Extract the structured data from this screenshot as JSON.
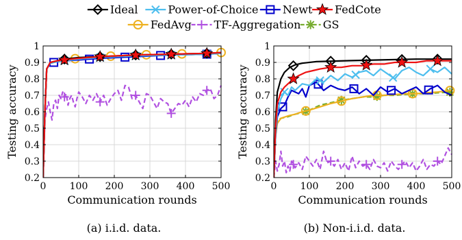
{
  "legend": [
    {
      "name": "Ideal",
      "color": "#000000",
      "marker": "diamond",
      "dash": "solid"
    },
    {
      "name": "Power-of-Choice",
      "color": "#4DBEEE",
      "marker": "x",
      "dash": "solid"
    },
    {
      "name": "Newt",
      "color": "#0000CC",
      "marker": "square",
      "dash": "solid"
    },
    {
      "name": "FedCote",
      "color": "#EE1111",
      "marker": "star",
      "dash": "solid"
    },
    {
      "name": "FedAvg",
      "color": "#EDB120",
      "marker": "circle",
      "dash": "solid"
    },
    {
      "name": "TF-Aggregation",
      "color": "#B050E0",
      "marker": "plus",
      "dash": "dash"
    },
    {
      "name": "GS",
      "color": "#77AC30",
      "marker": "asterisk",
      "dash": "dash"
    }
  ],
  "chart_data": [
    {
      "type": "line",
      "caption": "(a) i.i.d. data.",
      "xlabel": "Communication rounds",
      "ylabel": "Testing accuracy",
      "xlim": [
        0,
        500
      ],
      "ylim": [
        0.2,
        1
      ],
      "xticks": [
        0,
        100,
        200,
        300,
        400,
        500
      ],
      "yticks": [
        0.2,
        0.3,
        0.4,
        0.5,
        0.6,
        0.7,
        0.8,
        0.9,
        1
      ],
      "ytick_labels": [
        "0.2",
        "0.3",
        "0.4",
        "0.5",
        "0.6",
        "0.7",
        "0.8",
        "0.9",
        "1"
      ],
      "grid": true,
      "series": [
        {
          "name": "Ideal",
          "x": [
            0,
            5,
            10,
            20,
            40,
            60,
            100,
            160,
            260,
            360,
            460,
            500
          ],
          "y": [
            0.2,
            0.6,
            0.86,
            0.9,
            0.91,
            0.92,
            0.93,
            0.935,
            0.945,
            0.95,
            0.955,
            0.96
          ],
          "markers_x": [
            60,
            160,
            260,
            360,
            460
          ]
        },
        {
          "name": "Power-of-Choice",
          "x": [
            0,
            5,
            10,
            20,
            40,
            60,
            100,
            160,
            260,
            360,
            460,
            500
          ],
          "y": [
            0.2,
            0.6,
            0.86,
            0.895,
            0.905,
            0.91,
            0.92,
            0.93,
            0.94,
            0.945,
            0.95,
            0.955
          ],
          "markers_x": [
            60,
            160,
            260,
            360,
            460
          ]
        },
        {
          "name": "Newt",
          "x": [
            0,
            5,
            10,
            20,
            40,
            60,
            100,
            160,
            260,
            360,
            460,
            500
          ],
          "y": [
            0.2,
            0.6,
            0.86,
            0.895,
            0.905,
            0.91,
            0.915,
            0.925,
            0.935,
            0.945,
            0.95,
            0.955
          ],
          "markers_x": [
            30,
            130,
            230,
            330,
            460
          ]
        },
        {
          "name": "FedCote",
          "x": [
            0,
            5,
            10,
            20,
            40,
            60,
            100,
            160,
            260,
            360,
            460,
            500
          ],
          "y": [
            0.2,
            0.6,
            0.86,
            0.9,
            0.91,
            0.915,
            0.925,
            0.935,
            0.945,
            0.95,
            0.955,
            0.96
          ],
          "markers_x": [
            60,
            160,
            260,
            360,
            460
          ]
        },
        {
          "name": "FedAvg",
          "x": [
            0,
            5,
            10,
            20,
            40,
            60,
            100,
            160,
            260,
            360,
            460,
            500
          ],
          "y": [
            0.2,
            0.6,
            0.86,
            0.895,
            0.91,
            0.915,
            0.925,
            0.935,
            0.945,
            0.95,
            0.955,
            0.96
          ],
          "markers_x": [
            90,
            190,
            290,
            390,
            500
          ]
        },
        {
          "name": "TF-Aggregation",
          "x": [
            0,
            5,
            10,
            15,
            20,
            25,
            30,
            35,
            40,
            45,
            50,
            55,
            60,
            65,
            70,
            75,
            80,
            85,
            90,
            95,
            100,
            110,
            120,
            130,
            140,
            150,
            160,
            170,
            180,
            190,
            200,
            210,
            220,
            230,
            240,
            250,
            260,
            270,
            280,
            290,
            300,
            310,
            320,
            330,
            340,
            350,
            360,
            370,
            380,
            390,
            400,
            410,
            420,
            430,
            440,
            450,
            460,
            470,
            480,
            490,
            500
          ],
          "y": [
            0.2,
            0.55,
            0.62,
            0.66,
            0.6,
            0.55,
            0.65,
            0.67,
            0.62,
            0.7,
            0.68,
            0.72,
            0.69,
            0.71,
            0.64,
            0.68,
            0.7,
            0.66,
            0.63,
            0.68,
            0.72,
            0.69,
            0.65,
            0.7,
            0.67,
            0.71,
            0.66,
            0.7,
            0.64,
            0.68,
            0.71,
            0.73,
            0.67,
            0.76,
            0.75,
            0.68,
            0.7,
            0.66,
            0.62,
            0.71,
            0.7,
            0.66,
            0.62,
            0.68,
            0.66,
            0.65,
            0.59,
            0.62,
            0.65,
            0.64,
            0.67,
            0.63,
            0.69,
            0.66,
            0.71,
            0.7,
            0.73,
            0.74,
            0.68,
            0.7,
            0.76
          ],
          "markers_x": [
            60,
            160,
            260,
            360,
            460
          ]
        },
        {
          "name": "GS",
          "x": [
            0,
            5,
            10,
            20,
            40,
            60,
            100,
            160,
            260,
            360,
            460,
            500
          ],
          "y": [
            0.2,
            0.6,
            0.86,
            0.895,
            0.905,
            0.91,
            0.92,
            0.93,
            0.94,
            0.945,
            0.95,
            0.955
          ],
          "markers_x": []
        }
      ]
    },
    {
      "type": "line",
      "caption": "(b) Non-i.i.d. data.",
      "xlabel": "Communication rounds",
      "ylabel": "Testing accuracy",
      "xlim": [
        0,
        500
      ],
      "ylim": [
        0.2,
        1
      ],
      "xticks": [
        0,
        100,
        200,
        300,
        400,
        500
      ],
      "yticks": [
        0.2,
        0.3,
        0.4,
        0.5,
        0.6,
        0.7,
        0.8,
        0.9,
        1
      ],
      "ytick_labels": [
        "0.2",
        "0.3",
        "0.4",
        "0.5",
        "0.6",
        "0.7",
        "0.8",
        "0.9",
        "1"
      ],
      "grid": true,
      "series": [
        {
          "name": "Ideal",
          "x": [
            0,
            5,
            10,
            20,
            30,
            45,
            60,
            80,
            120,
            200,
            300,
            400,
            500
          ],
          "y": [
            0.2,
            0.55,
            0.72,
            0.8,
            0.84,
            0.87,
            0.885,
            0.895,
            0.905,
            0.91,
            0.915,
            0.92,
            0.92
          ],
          "markers_x": [
            55,
            160,
            260,
            360,
            460
          ]
        },
        {
          "name": "Power-of-Choice",
          "x": [
            0,
            5,
            10,
            20,
            30,
            40,
            50,
            60,
            80,
            100,
            120,
            140,
            160,
            180,
            200,
            220,
            240,
            260,
            280,
            300,
            320,
            340,
            360,
            380,
            400,
            420,
            440,
            460,
            480,
            500
          ],
          "y": [
            0.2,
            0.45,
            0.6,
            0.68,
            0.72,
            0.7,
            0.75,
            0.73,
            0.77,
            0.76,
            0.8,
            0.78,
            0.82,
            0.79,
            0.83,
            0.81,
            0.84,
            0.85,
            0.82,
            0.86,
            0.83,
            0.8,
            0.85,
            0.87,
            0.84,
            0.82,
            0.86,
            0.84,
            0.87,
            0.83
          ],
          "markers_x": [
            30,
            130,
            230,
            335,
            440
          ]
        },
        {
          "name": "Newt",
          "x": [
            0,
            5,
            10,
            20,
            30,
            40,
            50,
            60,
            70,
            80,
            90,
            100,
            120,
            140,
            160,
            180,
            200,
            220,
            240,
            260,
            280,
            300,
            320,
            340,
            360,
            380,
            400,
            420,
            440,
            460,
            480,
            500
          ],
          "y": [
            0.2,
            0.45,
            0.57,
            0.62,
            0.64,
            0.69,
            0.73,
            0.72,
            0.71,
            0.74,
            0.69,
            0.76,
            0.78,
            0.73,
            0.76,
            0.74,
            0.73,
            0.75,
            0.71,
            0.74,
            0.7,
            0.75,
            0.72,
            0.74,
            0.71,
            0.73,
            0.75,
            0.71,
            0.74,
            0.76,
            0.72,
            0.7
          ],
          "markers_x": [
            25,
            125,
            225,
            330,
            435
          ]
        },
        {
          "name": "FedCote",
          "x": [
            0,
            5,
            10,
            20,
            30,
            40,
            55,
            70,
            90,
            110,
            130,
            160,
            190,
            220,
            250,
            280,
            310,
            340,
            370,
            400,
            430,
            460,
            500
          ],
          "y": [
            0.2,
            0.5,
            0.65,
            0.72,
            0.75,
            0.77,
            0.8,
            0.82,
            0.84,
            0.85,
            0.86,
            0.87,
            0.87,
            0.88,
            0.88,
            0.89,
            0.89,
            0.9,
            0.9,
            0.9,
            0.91,
            0.91,
            0.91
          ],
          "markers_x": [
            55,
            160,
            260,
            360,
            460
          ]
        },
        {
          "name": "FedAvg",
          "x": [
            0,
            5,
            10,
            20,
            40,
            60,
            80,
            100,
            130,
            160,
            190,
            220,
            250,
            280,
            310,
            340,
            370,
            400,
            430,
            460,
            500
          ],
          "y": [
            0.2,
            0.45,
            0.53,
            0.56,
            0.575,
            0.585,
            0.6,
            0.61,
            0.63,
            0.65,
            0.665,
            0.68,
            0.69,
            0.7,
            0.7,
            0.705,
            0.71,
            0.71,
            0.715,
            0.72,
            0.73
          ],
          "markers_x": [
            90,
            190,
            290,
            390,
            495
          ]
        },
        {
          "name": "TF-Aggregation",
          "x": [
            0,
            5,
            10,
            15,
            20,
            25,
            30,
            35,
            40,
            45,
            50,
            60,
            70,
            80,
            90,
            100,
            110,
            120,
            130,
            140,
            150,
            160,
            170,
            180,
            190,
            200,
            210,
            220,
            230,
            240,
            250,
            260,
            270,
            280,
            290,
            300,
            310,
            320,
            330,
            340,
            350,
            360,
            370,
            380,
            390,
            400,
            410,
            420,
            430,
            440,
            450,
            460,
            470,
            480,
            490,
            500
          ],
          "y": [
            0.2,
            0.3,
            0.24,
            0.28,
            0.36,
            0.27,
            0.3,
            0.23,
            0.27,
            0.24,
            0.3,
            0.26,
            0.29,
            0.25,
            0.33,
            0.3,
            0.27,
            0.31,
            0.25,
            0.36,
            0.29,
            0.3,
            0.27,
            0.31,
            0.25,
            0.29,
            0.24,
            0.33,
            0.26,
            0.3,
            0.27,
            0.28,
            0.25,
            0.31,
            0.27,
            0.26,
            0.29,
            0.24,
            0.3,
            0.27,
            0.25,
            0.28,
            0.3,
            0.26,
            0.29,
            0.24,
            0.27,
            0.31,
            0.25,
            0.28,
            0.27,
            0.3,
            0.28,
            0.33,
            0.38,
            0.34
          ],
          "markers_x": [
            55,
            160,
            260,
            360,
            460
          ]
        },
        {
          "name": "GS",
          "x": [
            0,
            5,
            10,
            20,
            40,
            60,
            80,
            100,
            130,
            160,
            190,
            220,
            250,
            280,
            310,
            340,
            370,
            400,
            430,
            460,
            500
          ],
          "y": [
            0.2,
            0.48,
            0.55,
            0.56,
            0.57,
            0.585,
            0.595,
            0.61,
            0.64,
            0.655,
            0.67,
            0.68,
            0.69,
            0.69,
            0.7,
            0.7,
            0.705,
            0.71,
            0.71,
            0.715,
            0.72
          ],
          "markers_x": [
            90,
            190,
            290,
            390,
            495
          ]
        }
      ]
    }
  ]
}
